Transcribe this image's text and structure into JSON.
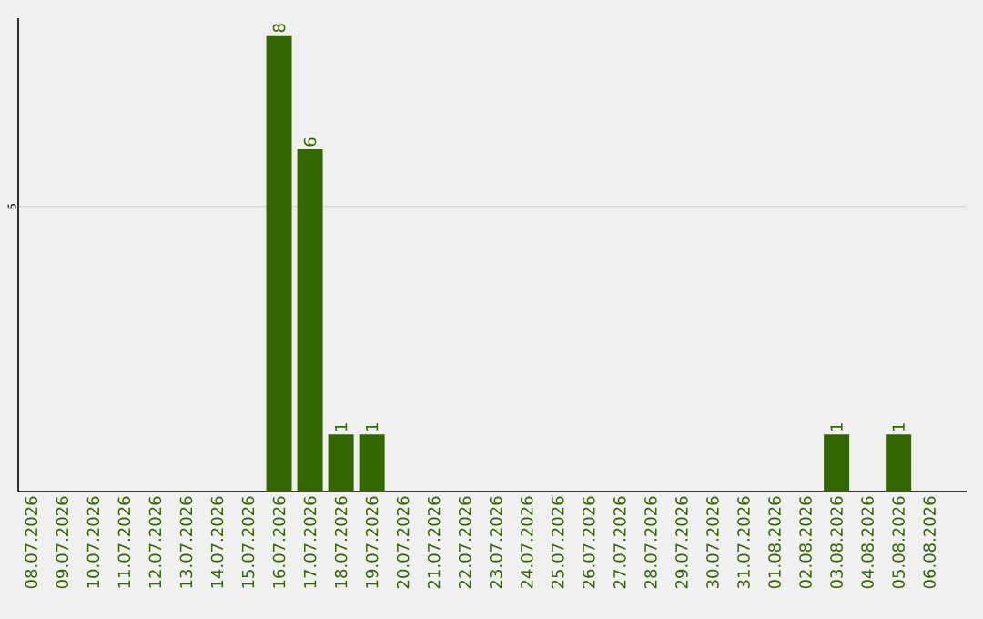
{
  "chart_data": {
    "type": "bar",
    "categories": [
      "08.07.2026",
      "09.07.2026",
      "10.07.2026",
      "11.07.2026",
      "12.07.2026",
      "13.07.2026",
      "14.07.2026",
      "15.07.2026",
      "16.07.2026",
      "17.07.2026",
      "18.07.2026",
      "19.07.2026",
      "20.07.2026",
      "21.07.2026",
      "22.07.2026",
      "23.07.2026",
      "24.07.2026",
      "25.07.2026",
      "26.07.2026",
      "27.07.2026",
      "28.07.2026",
      "29.07.2026",
      "30.07.2026",
      "31.07.2026",
      "01.08.2026",
      "02.08.2026",
      "03.08.2026",
      "04.08.2026",
      "05.08.2026",
      "06.08.2026"
    ],
    "values": [
      0,
      0,
      0,
      0,
      0,
      0,
      0,
      0,
      8,
      6,
      1,
      1,
      0,
      0,
      0,
      0,
      0,
      0,
      0,
      0,
      0,
      0,
      0,
      0,
      0,
      0,
      1,
      0,
      1,
      0
    ],
    "value_labels": [
      null,
      null,
      null,
      null,
      null,
      null,
      null,
      null,
      "8",
      "6",
      "1",
      "1",
      null,
      null,
      null,
      null,
      null,
      null,
      null,
      null,
      null,
      null,
      null,
      null,
      null,
      null,
      "1",
      null,
      "1",
      null
    ],
    "color": "#336600",
    "ylim": [
      0,
      8.3
    ],
    "yticks": [
      5
    ],
    "grid": "y"
  }
}
